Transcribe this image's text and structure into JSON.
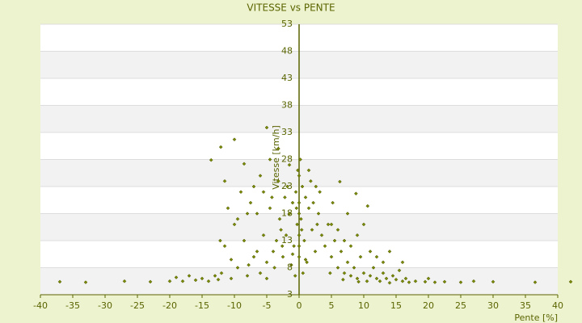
{
  "chart_data": {
    "type": "scatter",
    "title": "VITESSE vs PENTE",
    "x_label": "Pente [%]",
    "y_label": "Vitesse [km/h]",
    "xlim": [
      -40,
      40
    ],
    "xticks": [
      -40,
      -35,
      -30,
      -25,
      -20,
      -15,
      -10,
      -5,
      0,
      5,
      10,
      15,
      20,
      25,
      30,
      35,
      40
    ],
    "ylim": [
      3,
      53
    ],
    "yticks": [
      3,
      8,
      13,
      18,
      23,
      28,
      33,
      38,
      43,
      48,
      53
    ],
    "grid": true,
    "color": "#7a8a00",
    "x": [
      0,
      0.5,
      -0.5,
      1,
      -1,
      1.5,
      -1.5,
      0.3,
      -0.3,
      2,
      -2,
      0.8,
      -0.8,
      2.5,
      -2.5,
      1.2,
      -1.2,
      3,
      -3,
      3.5,
      -3.5,
      0.2,
      -0.2,
      1.8,
      -1.8,
      2.2,
      -2.2,
      2.8,
      -2.8,
      4,
      -4,
      4.5,
      -4.5,
      0,
      0,
      0,
      0,
      0,
      0.6,
      -0.6,
      1,
      -1,
      3.2,
      -3.2,
      1.5,
      -1.5,
      2.6,
      -2.6,
      0.4,
      -0.4,
      5,
      5.5,
      6,
      6.5,
      7,
      7.5,
      8,
      8.5,
      9,
      9.5,
      10,
      10.5,
      11,
      11.5,
      12,
      12.5,
      13,
      13.5,
      14,
      14.5,
      15,
      15.5,
      16,
      16.5,
      17,
      18,
      5,
      6,
      7,
      8,
      9,
      10,
      11,
      6.3,
      8.8,
      10.6,
      7.5,
      5.2,
      12,
      13,
      4.8,
      6.8,
      9.2,
      19.5,
      21,
      22.5,
      25,
      27,
      30,
      36.5,
      42,
      20,
      16,
      14,
      -5,
      -5.5,
      -6,
      -6.5,
      -7,
      -7.5,
      -8,
      -8.5,
      -9,
      -9.5,
      -10,
      -10.5,
      -11,
      -11.5,
      -12,
      -12.5,
      -13,
      -14,
      -15,
      -16,
      -17,
      -18,
      -19,
      -20,
      -23,
      -27,
      -33,
      -37,
      -12.1,
      -10,
      -5,
      -13.6,
      -8.5,
      -6,
      -7,
      -4.5,
      -5.5,
      -8,
      -9.5,
      -11.5,
      -3.8,
      -5,
      -6.5,
      -7.8,
      -10.5,
      -12.2,
      -4.2,
      -3.2
    ],
    "y": [
      25,
      23,
      22,
      21,
      20,
      19,
      18,
      17,
      16,
      15,
      14,
      13,
      12,
      11,
      10,
      9,
      8.5,
      18,
      17,
      14,
      13,
      28,
      26,
      24,
      23,
      20,
      21,
      16,
      15,
      12,
      11,
      16,
      19,
      10,
      12,
      14,
      18,
      20,
      7,
      6.5,
      9.5,
      10.5,
      22,
      24,
      26,
      27,
      23,
      12,
      15,
      19,
      10,
      13,
      8,
      11,
      7,
      9,
      6.5,
      8,
      6,
      10,
      7,
      5.5,
      6.5,
      8,
      6,
      5.5,
      7,
      6,
      5.2,
      6.5,
      5.8,
      7.5,
      5.5,
      6,
      5.3,
      5.5,
      16,
      15,
      13,
      12,
      14,
      16,
      11,
      23.9,
      21.7,
      19.4,
      18,
      20,
      10,
      9,
      7,
      5.8,
      5.4,
      5.4,
      5.3,
      5.4,
      5.3,
      5.5,
      5.4,
      5.3,
      5.4,
      6,
      9,
      11,
      9,
      14,
      7,
      18,
      10,
      20,
      6.5,
      13,
      22,
      8,
      16,
      6,
      19,
      12,
      7,
      5.8,
      6.5,
      5.5,
      6,
      5.7,
      6.5,
      5.5,
      6.2,
      5.5,
      5.4,
      5.5,
      5.3,
      5.4,
      30.3,
      31.7,
      33.9,
      27.9,
      27.2,
      25,
      23,
      28,
      22,
      18,
      17,
      24,
      8,
      6,
      11,
      8.5,
      9.5,
      13,
      21,
      30
    ]
  }
}
